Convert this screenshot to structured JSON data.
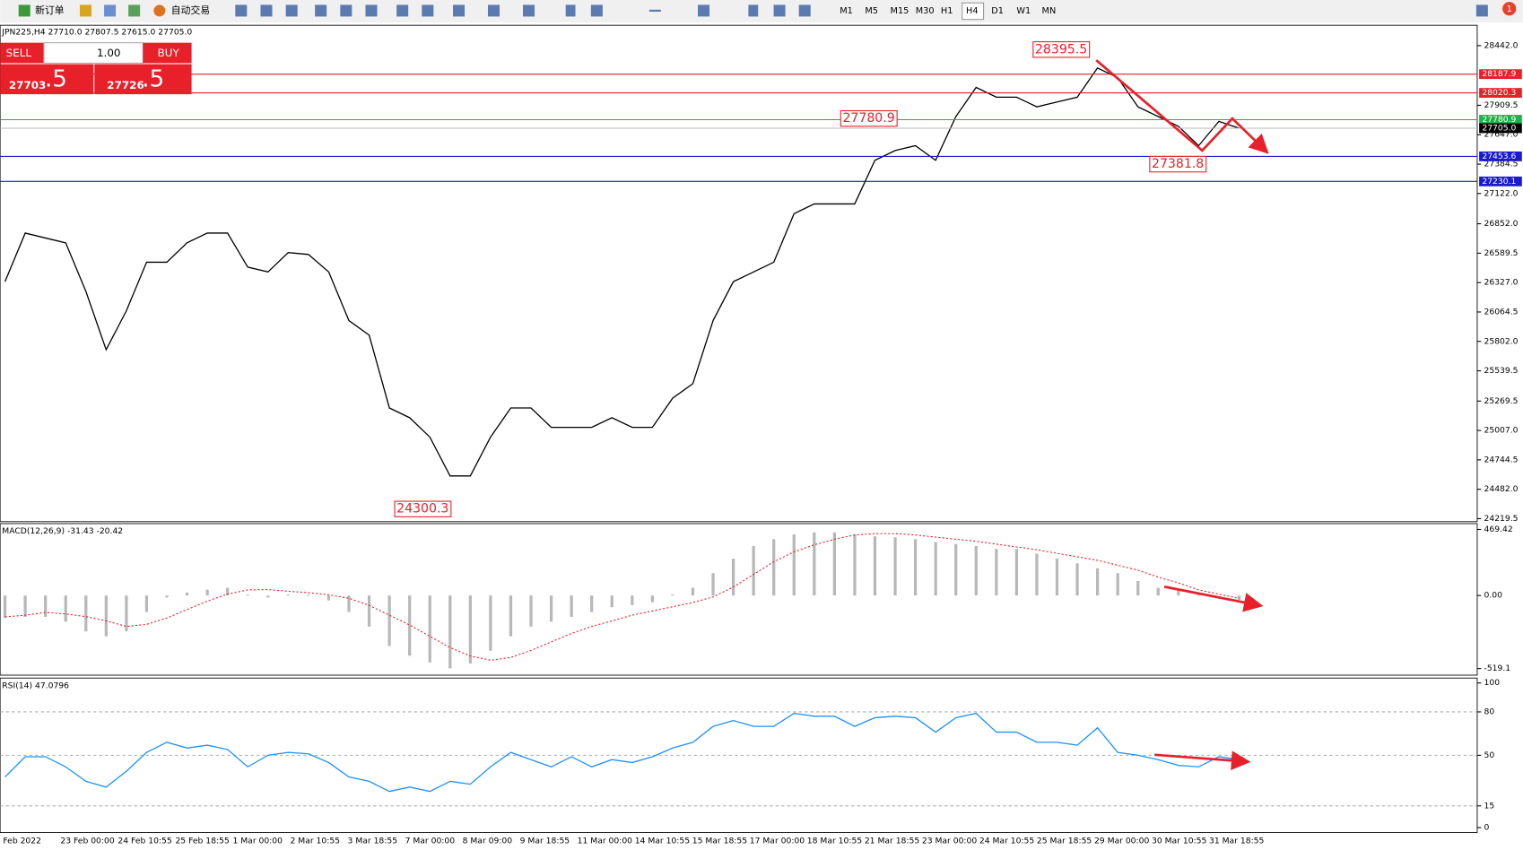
{
  "toolbar": {
    "buttons": [
      "新订单",
      "自动交易"
    ],
    "timeframes": [
      "M1",
      "M5",
      "M15",
      "M30",
      "H1",
      "H4",
      "D1",
      "W1",
      "MN"
    ],
    "active_timeframe_index": 5,
    "badge": "1"
  },
  "trade_panel": {
    "sell": "SELL",
    "buy": "BUY",
    "lots": "1.00",
    "sell_price": "27703",
    "sell_fraction": ".5",
    "buy_price": "27726",
    "buy_fraction": ".5"
  },
  "time_axis": [
    "Feb 2022",
    "23 Feb 00:00",
    "24 Feb 10:55",
    "25 Feb 18:55",
    "1 Mar 00:00",
    "2 Mar 10:55",
    "3 Mar 18:55",
    "7 Mar 00:00",
    "8 Mar 09:00",
    "9 Mar 18:55",
    "11 Mar 00:00",
    "14 Mar 10:55",
    "15 Mar 18:55",
    "17 Mar 00:00",
    "18 Mar 10:55",
    "21 Mar 18:55",
    "23 Mar 00:00",
    "24 Mar 10:55",
    "25 Mar 18:55",
    "29 Mar 00:00",
    "30 Mar 10:55",
    "31 Mar 18:55"
  ],
  "chart_data": [
    {
      "type": "line",
      "title": "JPN225,H4 27710.0 27807.5 27615.0 27705.0",
      "color": "#000000",
      "values": [
        26335,
        26769,
        26725,
        26682,
        26248,
        25728,
        26075,
        26509,
        26509,
        26682,
        26769,
        26769,
        26465,
        26422,
        26595,
        26578,
        26422,
        25988,
        25858,
        25208,
        25121,
        24948,
        24601,
        24601,
        24948,
        25208,
        25208,
        25035,
        25035,
        25035,
        25121,
        25035,
        25035,
        25295,
        25425,
        25988,
        26335,
        26422,
        26509,
        26942,
        27029,
        27029,
        27029,
        27419,
        27506,
        27549,
        27419,
        27809,
        28069,
        27982,
        27982,
        27896,
        27939,
        27982,
        28243,
        28156,
        27896,
        27809,
        27722,
        27549,
        27766,
        27705
      ],
      "ylim": [
        24193,
        28624
      ],
      "yticks": [
        {
          "value": 28442,
          "label": "28442.0"
        },
        {
          "value": 27909.5,
          "label": "27909.5"
        },
        {
          "value": 27647,
          "label": "27647.0"
        },
        {
          "value": 27384.5,
          "label": "27384.5"
        },
        {
          "value": 27122,
          "label": "27122.0"
        },
        {
          "value": 26852,
          "label": "26852.0"
        },
        {
          "value": 26589.5,
          "label": "26589.5"
        },
        {
          "value": 26327,
          "label": "26327.0"
        },
        {
          "value": 26064.5,
          "label": "26064.5"
        },
        {
          "value": 25802,
          "label": "25802.0"
        },
        {
          "value": 25539.5,
          "label": "25539.5"
        },
        {
          "value": 25269.5,
          "label": "25269.5"
        },
        {
          "value": 25007,
          "label": "25007.0"
        },
        {
          "value": 24744.5,
          "label": "24744.5"
        },
        {
          "value": 24482,
          "label": "24482.0"
        },
        {
          "value": 24219.5,
          "label": "24219.5"
        }
      ],
      "levels": [
        {
          "value": 28187.9,
          "color": "#e8202a"
        },
        {
          "value": 28020.3,
          "color": "#e8202a"
        },
        {
          "value": 27780.9,
          "color": "#22b04a"
        },
        {
          "value": {
            "value": 27705,
            "label": "27705.0"
          },
          "color": "#000000"
        },
        {
          "value": 27453.6,
          "color": "#1a1ad0"
        },
        {
          "value": 27230.1,
          "color": "#1a1ad0"
        }
      ],
      "annotations": [
        "28395.5",
        "27780.9",
        "27381.8",
        "24300.3"
      ]
    },
    {
      "type": "bar",
      "title": "MACD(12,26,9) -31.43 -20.42",
      "color": "#b8b8b8",
      "signal_color": "#e8202a",
      "values": [
        -159,
        -152,
        -152,
        -186,
        -255,
        -290,
        -255,
        -117,
        -14,
        21,
        41,
        55,
        7,
        -14,
        7,
        7,
        -35,
        -117,
        -221,
        -359,
        -428,
        -476,
        -518,
        -483,
        -393,
        -290,
        -221,
        -186,
        -152,
        -117,
        -83,
        -69,
        -48,
        7,
        55,
        159,
        262,
        352,
        400,
        435,
        449,
        449,
        435,
        421,
        414,
        400,
        380,
        366,
        352,
        331,
        331,
        297,
        262,
        228,
        193,
        159,
        103,
        55,
        35,
        21,
        0,
        -31.43
      ],
      "signal": [
        -152,
        -140,
        -120,
        -131,
        -150,
        -180,
        -220,
        -205,
        -160,
        -100,
        -40,
        10,
        40,
        42,
        30,
        20,
        5,
        -20,
        -70,
        -140,
        -210,
        -290,
        -370,
        -430,
        -460,
        -440,
        -390,
        -330,
        -270,
        -220,
        -180,
        -140,
        -110,
        -80,
        -50,
        -10,
        60,
        150,
        240,
        310,
        360,
        400,
        430,
        440,
        440,
        430,
        415,
        400,
        385,
        365,
        345,
        325,
        300,
        275,
        250,
        215,
        180,
        130,
        90,
        40,
        10,
        -20.42
      ],
      "ylim": [
        -566,
        511
      ],
      "yticks": [
        {
          "value": 469.42,
          "label": "469.42"
        },
        {
          "value": 0,
          "label": "0.00"
        },
        {
          "value": -519.1,
          "label": "-519.1"
        }
      ]
    },
    {
      "type": "line",
      "title": "RSI(14) 47.0796",
      "color": "#1e90ff",
      "values": [
        35,
        49,
        49,
        42,
        32,
        28,
        39,
        52,
        59,
        55,
        57,
        54,
        42,
        50,
        52,
        51,
        45,
        35,
        32,
        25,
        28,
        25,
        32,
        30,
        42,
        52,
        47,
        42,
        49,
        42,
        47,
        45,
        49,
        55,
        59,
        70,
        74,
        70,
        70,
        79,
        77,
        77,
        70,
        76,
        77,
        76,
        66,
        76,
        79,
        66,
        66,
        59,
        59,
        57,
        69,
        52,
        50,
        47,
        43,
        42,
        49,
        47.0796
      ],
      "ylim": [
        -3.4,
        103.4
      ],
      "yticks": [
        100,
        80,
        50,
        15,
        0
      ]
    }
  ]
}
